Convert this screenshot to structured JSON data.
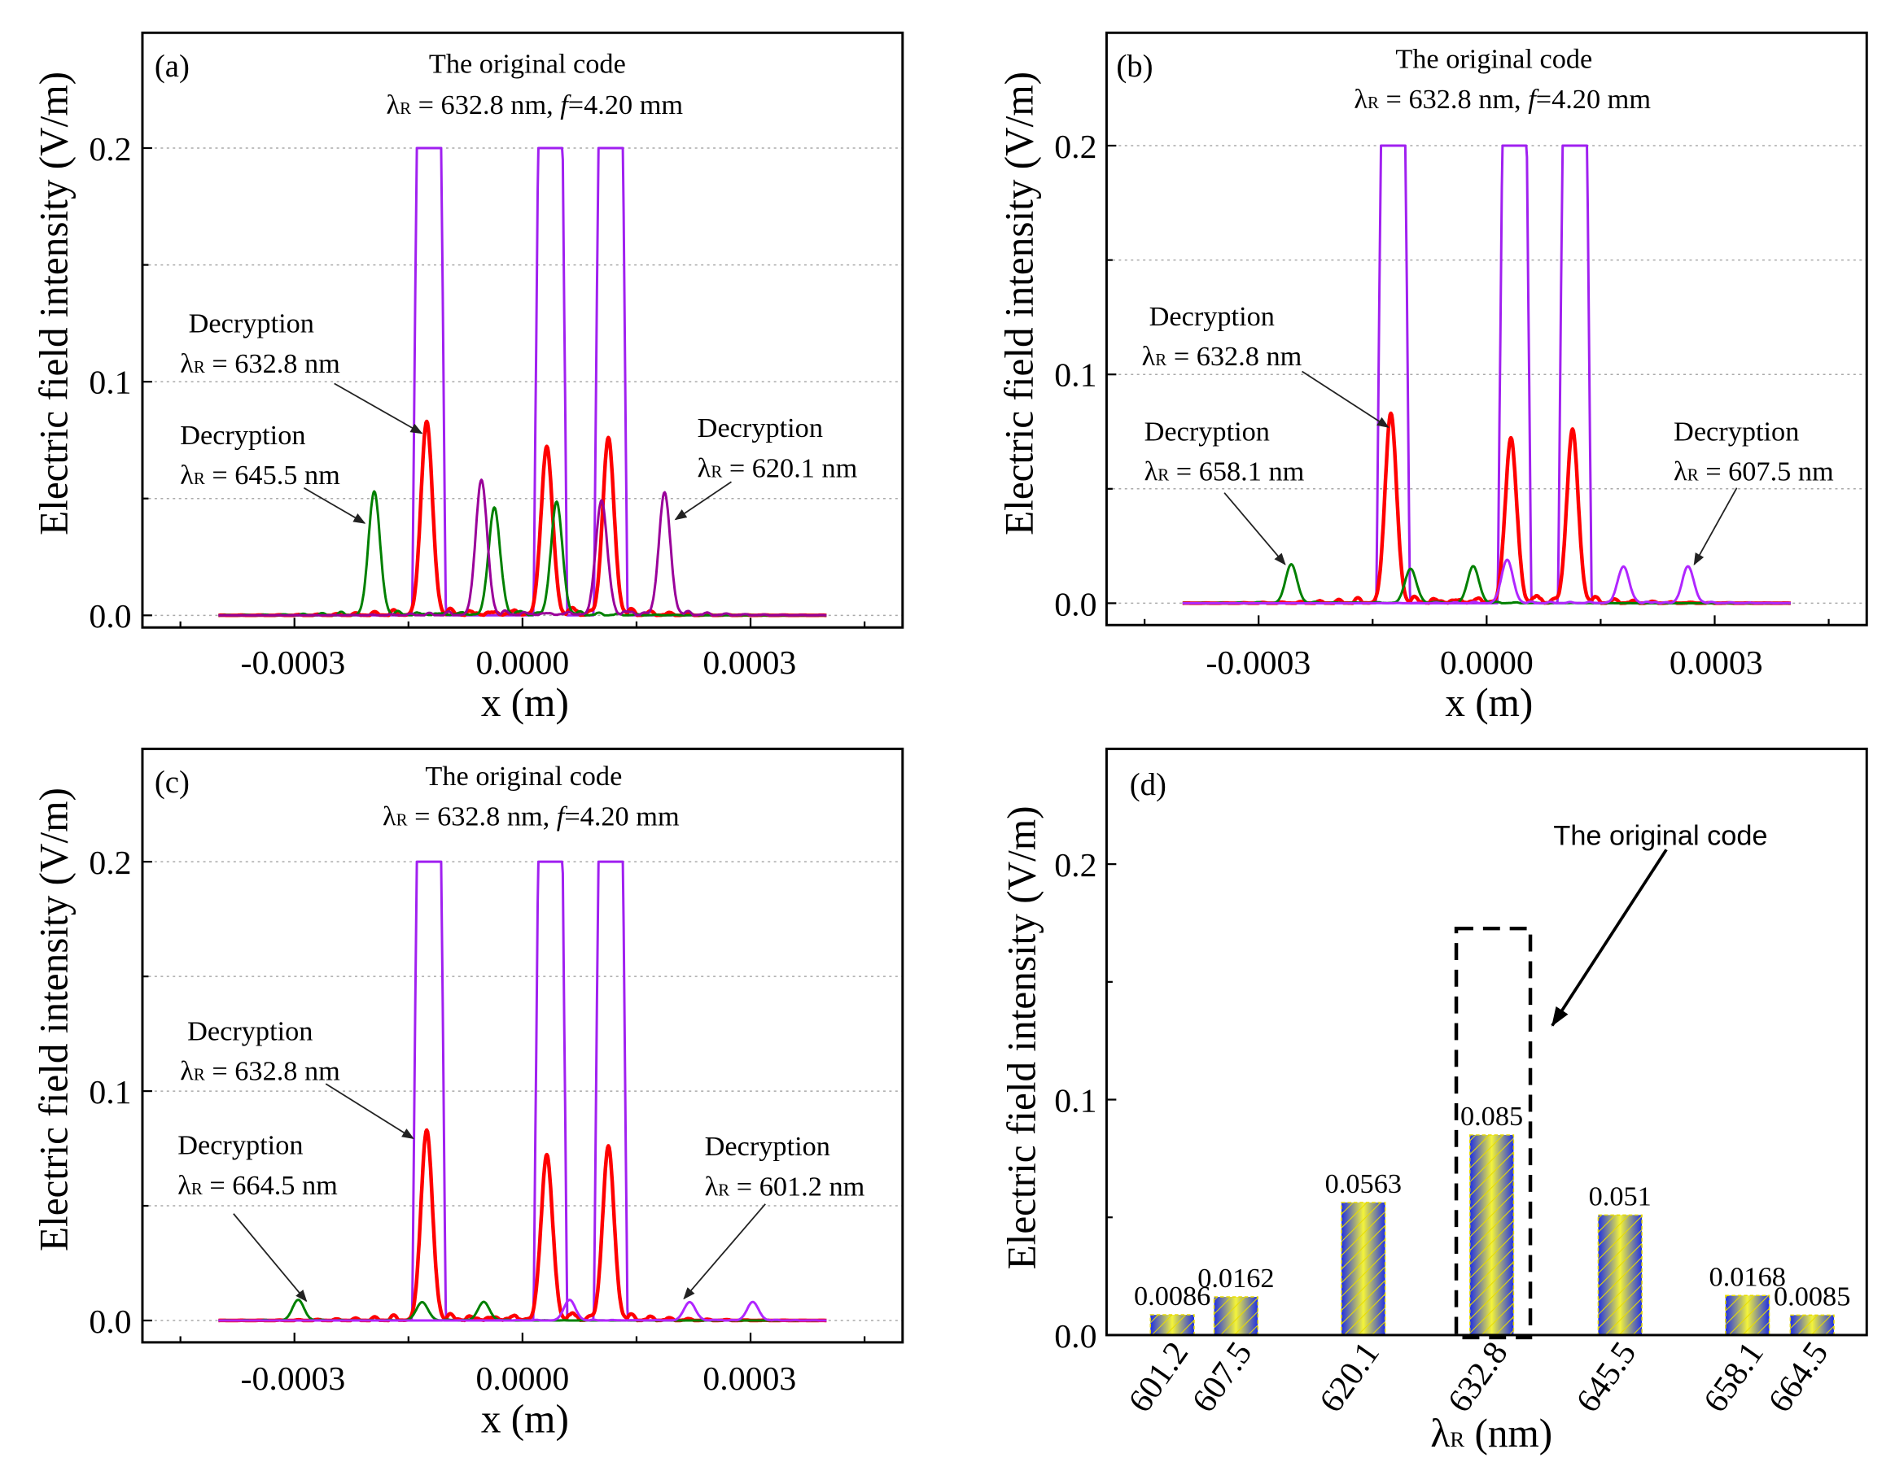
{
  "chart_data": [
    {
      "type": "line",
      "panel_label": "(a)",
      "title_line1": "The original code",
      "title_lambda": "λ",
      "title_sub": "R",
      "title_eq": " = 632.8 nm, ",
      "title_f": "f",
      "title_f_value": "=4.20 mm",
      "xlabel": "x (m)",
      "ylabel": "Electric field intensity (V/m)",
      "xlim": [
        -0.0005,
        0.0005
      ],
      "ylim": [
        -0.005,
        0.25
      ],
      "xticks": [
        "-0.0003",
        "0.0000",
        "0.0003"
      ],
      "yticks": [
        "0.0",
        "0.1",
        "0.2"
      ],
      "grid": true,
      "series": [
        {
          "name": "The original code",
          "color": "#a020f0",
          "kind": "rect",
          "width": 3.83e-05,
          "centers": [
            -0.000123,
            3.67e-05,
            0.000116
          ],
          "value": 0.2
        },
        {
          "name": "Decryption 632.8 nm",
          "color": "#ff0000",
          "kind": "peaks",
          "peaks": [
            [
              -0.000126,
              0.083
            ],
            [
              3.2e-05,
              0.072
            ],
            [
              0.000113,
              0.075
            ]
          ]
        },
        {
          "name": "Decryption 645.5 nm",
          "color": "#008000",
          "kind": "peaks",
          "peaks": [
            [
              -0.000195,
              0.053
            ],
            [
              -3.7e-05,
              0.046
            ],
            [
              4.5e-05,
              0.048
            ]
          ]
        },
        {
          "name": "Decryption 620.1 nm",
          "color": "#9a009a",
          "kind": "peaks",
          "peaks": [
            [
              -5.4e-05,
              0.058
            ],
            [
              0.000104,
              0.049
            ],
            [
              0.000187,
              0.052
            ]
          ]
        }
      ],
      "annotations": [
        {
          "title": "Decryption",
          "lambda": "λ",
          "sub": "R",
          "value": " = 632.8 nm"
        },
        {
          "title": "Decryption",
          "lambda": "λ",
          "sub": "R",
          "value": " = 645.5 nm"
        },
        {
          "title": "Decryption",
          "lambda": "λ",
          "sub": "R",
          "value": " = 620.1 nm"
        }
      ]
    },
    {
      "type": "line",
      "panel_label": "(b)",
      "title_line1": "The original code",
      "title_lambda": "λ",
      "title_sub": "R",
      "title_eq": " = 632.8 nm, ",
      "title_f": "f",
      "title_f_value": "=4.20 mm",
      "xlabel": "x (m)",
      "ylabel": "Electric field intensity (V/m)",
      "xlim": [
        -0.0005,
        0.0005
      ],
      "ylim": [
        -0.005,
        0.25
      ],
      "xticks": [
        "-0.0003",
        "0.0000",
        "0.0003"
      ],
      "yticks": [
        "0.0",
        "0.1",
        "0.2"
      ],
      "grid": true,
      "series": [
        {
          "name": "The original code",
          "color": "#a020f0",
          "kind": "rect",
          "width": 3.83e-05,
          "centers": [
            -0.000123,
            3.67e-05,
            0.000116
          ],
          "value": 0.2
        },
        {
          "name": "Decryption 632.8 nm",
          "color": "#ff0000",
          "kind": "peaks",
          "peaks": [
            [
              -0.000126,
              0.083
            ],
            [
              3.2e-05,
              0.072
            ],
            [
              0.000113,
              0.075
            ]
          ]
        },
        {
          "name": "Decryption 658.1 nm",
          "color": "#008000",
          "kind": "peaks",
          "peaks": [
            [
              -0.000257,
              0.017
            ],
            [
              -0.0001,
              0.015
            ],
            [
              -1.76e-05,
              0.016
            ]
          ]
        },
        {
          "name": "Decryption 607.5 nm",
          "color": "#b026ff",
          "kind": "peaks",
          "peaks": [
            [
              2.7e-05,
              0.019
            ],
            [
              0.00018,
              0.016
            ],
            [
              0.000265,
              0.016
            ]
          ]
        }
      ],
      "annotations": [
        {
          "title": "Decryption",
          "lambda": "λ",
          "sub": "R",
          "value": " = 632.8 nm"
        },
        {
          "title": "Decryption",
          "lambda": "λ",
          "sub": "R",
          "value": " = 658.1 nm"
        },
        {
          "title": "Decryption",
          "lambda": "λ",
          "sub": "R",
          "value": " = 607.5 nm"
        }
      ]
    },
    {
      "type": "line",
      "panel_label": "(c)",
      "title_line1": "The original code",
      "title_lambda": "λ",
      "title_sub": "R",
      "title_eq": " = 632.8 nm, ",
      "title_f": "f",
      "title_f_value": "=4.20 mm",
      "xlabel": "x (m)",
      "ylabel": "Electric field intensity (V/m)",
      "xlim": [
        -0.0005,
        0.0005
      ],
      "ylim": [
        -0.005,
        0.25
      ],
      "xticks": [
        "-0.0003",
        "0.0000",
        "0.0003"
      ],
      "yticks": [
        "0.0",
        "0.1",
        "0.2"
      ],
      "grid": true,
      "series": [
        {
          "name": "The original code",
          "color": "#a020f0",
          "kind": "rect",
          "width": 3.83e-05,
          "centers": [
            -0.000123,
            3.67e-05,
            0.000116
          ],
          "value": 0.2
        },
        {
          "name": "Decryption 632.8 nm",
          "color": "#ff0000",
          "kind": "peaks",
          "peaks": [
            [
              -0.000126,
              0.083
            ],
            [
              3.2e-05,
              0.072
            ],
            [
              0.000113,
              0.075
            ]
          ]
        },
        {
          "name": "Decryption 664.5 nm",
          "color": "#008000",
          "kind": "peaks",
          "peaks": [
            [
              -0.000295,
              0.009
            ],
            [
              -0.000132,
              0.008
            ],
            [
              -5.1e-05,
              0.008
            ]
          ]
        },
        {
          "name": "Decryption 601.2 nm",
          "color": "#b026ff",
          "kind": "peaks",
          "peaks": [
            [
              6.2e-05,
              0.009
            ],
            [
              0.00022,
              0.008
            ],
            [
              0.000303,
              0.008
            ]
          ]
        }
      ],
      "annotations": [
        {
          "title": "Decryption",
          "lambda": "λ",
          "sub": "R",
          "value": " = 632.8 nm"
        },
        {
          "title": "Decryption",
          "lambda": "λ",
          "sub": "R",
          "value": " = 664.5 nm"
        },
        {
          "title": "Decryption",
          "lambda": "λ",
          "sub": "R",
          "value": " = 601.2 nm"
        }
      ]
    },
    {
      "type": "bar",
      "panel_label": "(d)",
      "xlabel_lambda": "λ",
      "xlabel_sub": "R",
      "xlabel_unit": " (nm)",
      "ylabel": "Electric field intensity (V/m)",
      "categories": [
        "601.2",
        "607.5",
        "620.1",
        "632.8",
        "645.5",
        "658.1",
        "664.5"
      ],
      "x": [
        601.2,
        607.5,
        620.1,
        632.8,
        645.5,
        658.1,
        664.5
      ],
      "values": [
        0.0086,
        0.0162,
        0.0563,
        0.085,
        0.051,
        0.0168,
        0.0085
      ],
      "data_labels": [
        "0.0086",
        "0.0162",
        "0.0563",
        "0.085",
        "0.051",
        "0.0168",
        "0.0085"
      ],
      "xlim": [
        594.7,
        669.9
      ],
      "ylim": [
        0,
        0.25
      ],
      "yticks": [
        "0.0",
        "0.1",
        "0.2"
      ],
      "highlight": {
        "category": "632.8",
        "label": "The original code",
        "box_top": 0.173
      },
      "colors": {
        "bar_edge": "#1e2ee6",
        "bar_center": "#f4f43a",
        "hatch": "#e0d000"
      }
    }
  ]
}
